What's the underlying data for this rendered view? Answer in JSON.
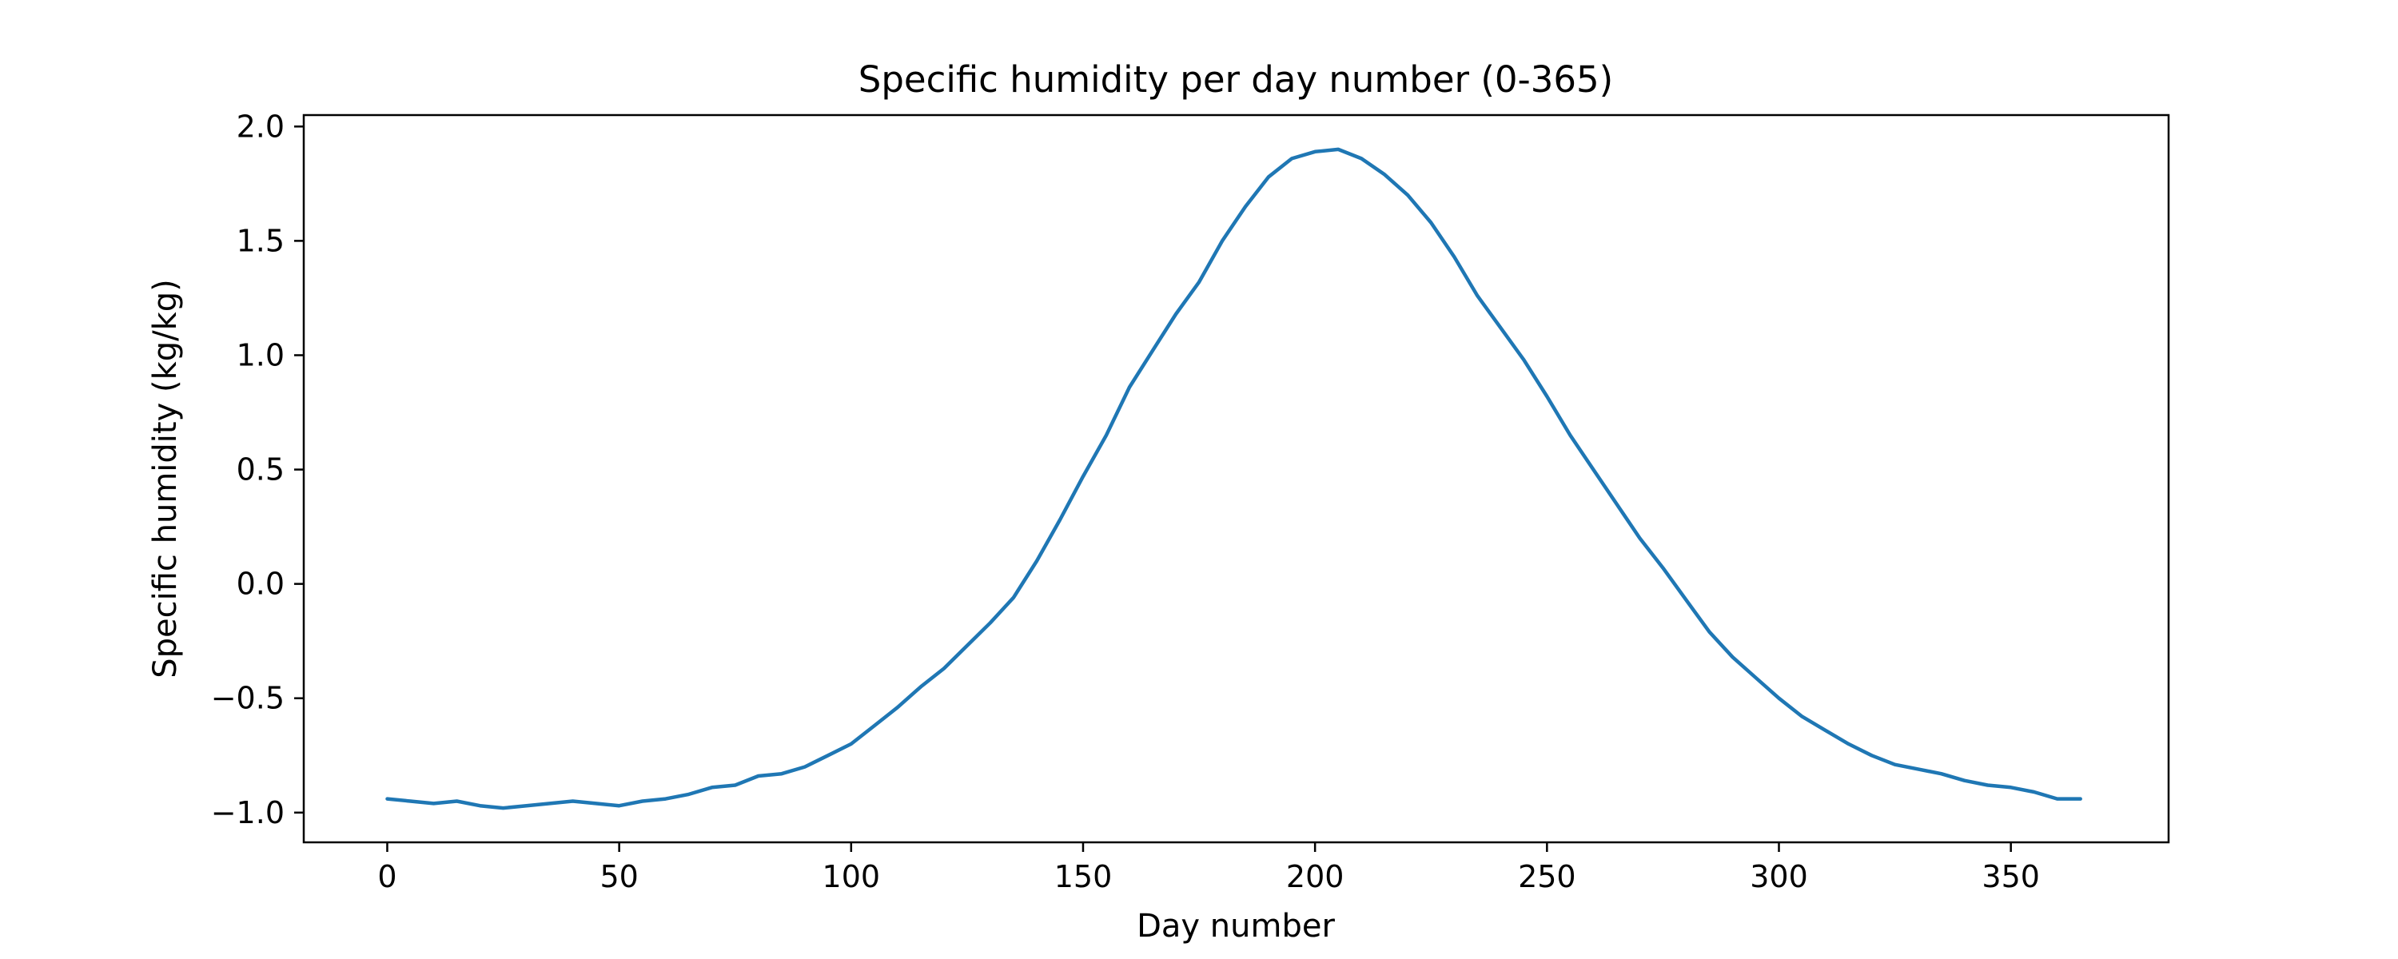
{
  "chart_data": {
    "type": "line",
    "title": "Specific humidity per day number (0-365)",
    "xlabel": "Day number",
    "ylabel": "Specific humidity (kg/kg)",
    "xlim": [
      -18,
      384
    ],
    "ylim": [
      -1.13,
      2.05
    ],
    "x_ticks": [
      0,
      50,
      100,
      150,
      200,
      250,
      300,
      350
    ],
    "y_ticks": [
      -1.0,
      -0.5,
      0.0,
      0.5,
      1.0,
      1.5,
      2.0
    ],
    "y_tick_labels": [
      "−1.0",
      "−0.5",
      "0.0",
      "0.5",
      "1.0",
      "1.5",
      "2.0"
    ],
    "grid": false,
    "legend": "none",
    "series": [
      {
        "color": "#1f77b4",
        "x": [
          0,
          5,
          10,
          15,
          20,
          25,
          30,
          35,
          40,
          45,
          50,
          55,
          60,
          65,
          70,
          75,
          80,
          85,
          90,
          95,
          100,
          105,
          110,
          115,
          120,
          125,
          130,
          135,
          140,
          145,
          150,
          155,
          160,
          165,
          170,
          175,
          180,
          185,
          190,
          195,
          200,
          205,
          210,
          215,
          220,
          225,
          230,
          235,
          240,
          245,
          250,
          255,
          260,
          265,
          270,
          275,
          280,
          285,
          290,
          295,
          300,
          305,
          310,
          315,
          320,
          325,
          330,
          335,
          340,
          345,
          350,
          355,
          360,
          365
        ],
        "values": [
          -0.94,
          -0.95,
          -0.96,
          -0.95,
          -0.97,
          -0.98,
          -0.97,
          -0.96,
          -0.95,
          -0.96,
          -0.97,
          -0.95,
          -0.94,
          -0.92,
          -0.89,
          -0.88,
          -0.84,
          -0.83,
          -0.8,
          -0.75,
          -0.7,
          -0.62,
          -0.54,
          -0.45,
          -0.37,
          -0.27,
          -0.17,
          -0.06,
          0.1,
          0.28,
          0.47,
          0.65,
          0.86,
          1.02,
          1.18,
          1.32,
          1.5,
          1.65,
          1.78,
          1.86,
          1.89,
          1.9,
          1.86,
          1.79,
          1.7,
          1.58,
          1.43,
          1.26,
          1.12,
          0.98,
          0.82,
          0.65,
          0.5,
          0.35,
          0.2,
          0.07,
          -0.07,
          -0.21,
          -0.32,
          -0.41,
          -0.5,
          -0.58,
          -0.64,
          -0.7,
          -0.75,
          -0.79,
          -0.81,
          -0.83,
          -0.86,
          -0.88,
          -0.89,
          -0.91,
          -0.94,
          -0.94
        ]
      }
    ]
  }
}
